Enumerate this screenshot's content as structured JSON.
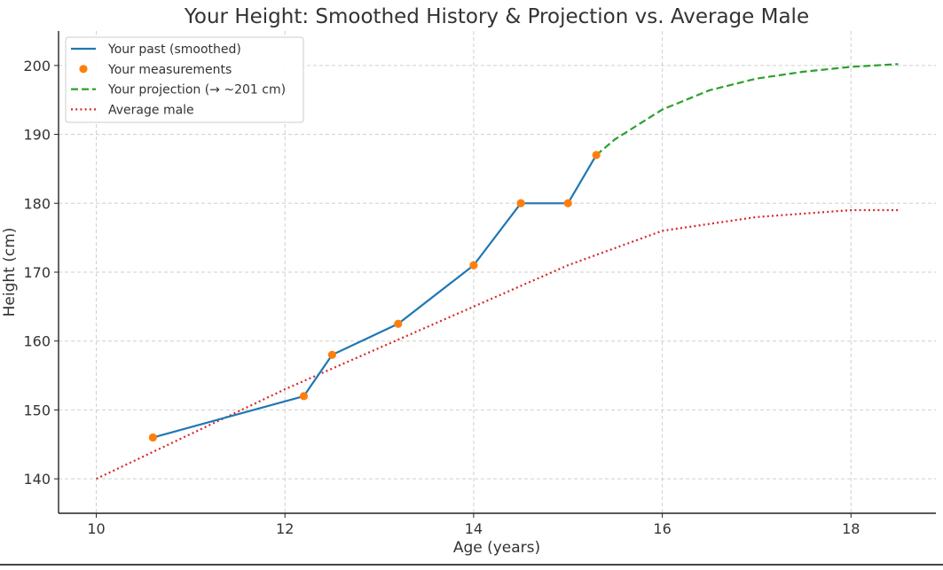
{
  "chart_data": {
    "type": "line",
    "title": "Your Height: Smoothed History & Projection vs. Average Male",
    "xlabel": "Age (years)",
    "ylabel": "Height (cm)",
    "xlim": [
      9.6,
      18.9
    ],
    "ylim": [
      135,
      205
    ],
    "xticks": [
      10,
      12,
      14,
      16,
      18
    ],
    "yticks": [
      140,
      150,
      160,
      170,
      180,
      190,
      200
    ],
    "grid": true,
    "legend_position": "top-left",
    "series": [
      {
        "name": "Your past (smoothed)",
        "style": "solid-line",
        "color": "#1f77b4",
        "x": [
          10.6,
          12.2,
          12.5,
          13.2,
          14.0,
          14.5,
          15.0,
          15.3
        ],
        "y": [
          146,
          152,
          158,
          162.5,
          171,
          180,
          180,
          187
        ]
      },
      {
        "name": "Your measurements",
        "style": "markers",
        "color": "#ff7f0e",
        "x": [
          10.6,
          12.2,
          12.5,
          13.2,
          14.0,
          14.5,
          15.0,
          15.3
        ],
        "y": [
          146,
          152,
          158,
          162.5,
          171,
          180,
          180,
          187
        ]
      },
      {
        "name": "Your projection (→ ~201 cm)",
        "style": "dashed-line",
        "color": "#2ca02c",
        "x": [
          15.3,
          15.5,
          16.0,
          16.5,
          17.0,
          17.5,
          18.0,
          18.5
        ],
        "y": [
          187,
          189.3,
          193.6,
          196.4,
          198.1,
          199.1,
          199.8,
          200.2
        ]
      },
      {
        "name": "Average male",
        "style": "dotted-line",
        "color": "#d62728",
        "x": [
          10,
          11,
          12,
          13,
          14,
          15,
          16,
          17,
          18,
          18.5
        ],
        "y": [
          140,
          146.5,
          153,
          159,
          165,
          171,
          176,
          178,
          179,
          179
        ]
      }
    ]
  }
}
